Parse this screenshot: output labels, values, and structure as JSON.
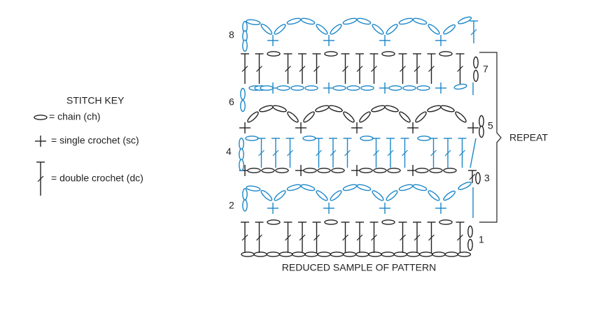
{
  "key": {
    "title": "STITCH KEY",
    "items": [
      "= chain (ch)",
      "= single crochet (sc)",
      "= double crochet (dc)"
    ]
  },
  "rows": [
    "1",
    "2",
    "3",
    "4",
    "5",
    "6",
    "7",
    "8"
  ],
  "repeat": "REPEAT",
  "caption": "REDUCED SAMPLE OF PATTERN"
}
